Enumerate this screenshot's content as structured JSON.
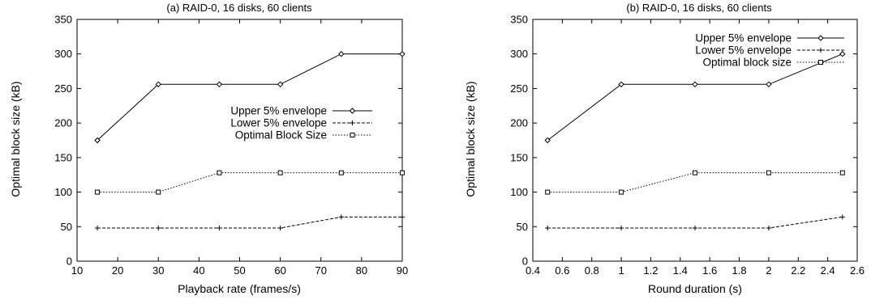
{
  "chart_data": [
    {
      "type": "line",
      "title": "(a) RAID-0, 16 disks, 60 clients",
      "xlabel": "Playback rate (frames/s)",
      "ylabel": "Optimal block size (kB)",
      "xlim": [
        10,
        90
      ],
      "ylim": [
        0,
        350
      ],
      "xticks": [
        "10",
        "20",
        "30",
        "40",
        "50",
        "60",
        "70",
        "80",
        "90"
      ],
      "yticks": [
        "0",
        "50",
        "100",
        "150",
        "200",
        "250",
        "300",
        "350"
      ],
      "grid": false,
      "legend_position": "center-right",
      "x": [
        15,
        30,
        45,
        60,
        75,
        90
      ],
      "series": [
        {
          "name": "Upper 5% envelope",
          "style": "solid",
          "marker": "diamond",
          "values": [
            175,
            256,
            256,
            256,
            300,
            300
          ]
        },
        {
          "name": "Lower 5% envelope",
          "style": "dashed",
          "marker": "plus",
          "values": [
            48,
            48,
            48,
            48,
            64,
            64
          ]
        },
        {
          "name": "Optimal Block Size",
          "style": "dotted",
          "marker": "square",
          "values": [
            100,
            100,
            128,
            128,
            128,
            128
          ]
        }
      ]
    },
    {
      "type": "line",
      "title": "(b) RAID-0, 16 disks, 60 clients",
      "xlabel": "Round duration (s)",
      "ylabel": "Optimal block size (kB)",
      "xlim": [
        0.4,
        2.6
      ],
      "ylim": [
        0,
        350
      ],
      "xticks": [
        "0.4",
        "0.6",
        "0.8",
        "1",
        "1.2",
        "1.4",
        "1.6",
        "1.8",
        "2",
        "2.2",
        "2.4",
        "2.6"
      ],
      "yticks": [
        "0",
        "50",
        "100",
        "150",
        "200",
        "250",
        "300",
        "350"
      ],
      "grid": false,
      "legend_position": "top-right",
      "x": [
        0.5,
        1.0,
        1.5,
        2.0,
        2.5
      ],
      "series": [
        {
          "name": "Upper 5% envelope",
          "style": "solid",
          "marker": "diamond",
          "values": [
            175,
            256,
            256,
            256,
            300
          ]
        },
        {
          "name": "Lower 5% envelope",
          "style": "dashed",
          "marker": "plus",
          "values": [
            48,
            48,
            48,
            48,
            64
          ]
        },
        {
          "name": "Optimal block size",
          "style": "dotted",
          "marker": "square",
          "values": [
            100,
            100,
            128,
            128,
            128
          ]
        }
      ]
    }
  ]
}
